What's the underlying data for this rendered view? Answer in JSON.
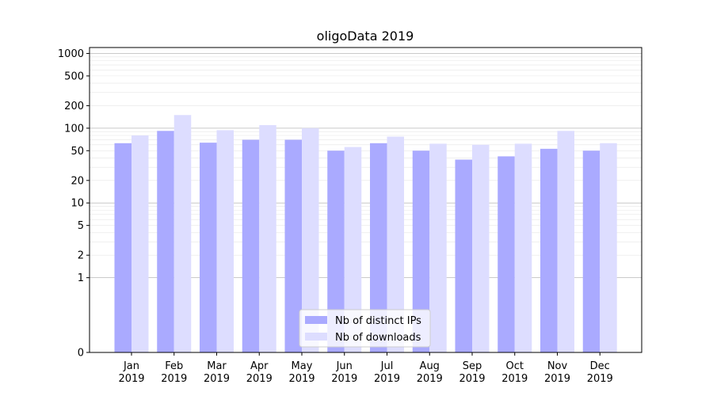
{
  "chart_data": {
    "type": "bar",
    "title": "oligoData 2019",
    "xlabel": "",
    "ylabel": "",
    "yscale": "symlog",
    "ylim": [
      0,
      1200
    ],
    "yticks": [
      0,
      1,
      2,
      5,
      10,
      20,
      50,
      100,
      200,
      500,
      1000
    ],
    "ytick_labels": [
      "0",
      "1",
      "2",
      "5",
      "10",
      "20",
      "50",
      "100",
      "200",
      "500",
      "1000"
    ],
    "categories": [
      {
        "month": "Jan",
        "year": "2019"
      },
      {
        "month": "Feb",
        "year": "2019"
      },
      {
        "month": "Mar",
        "year": "2019"
      },
      {
        "month": "Apr",
        "year": "2019"
      },
      {
        "month": "May",
        "year": "2019"
      },
      {
        "month": "Jun",
        "year": "2019"
      },
      {
        "month": "Jul",
        "year": "2019"
      },
      {
        "month": "Aug",
        "year": "2019"
      },
      {
        "month": "Sep",
        "year": "2019"
      },
      {
        "month": "Oct",
        "year": "2019"
      },
      {
        "month": "Nov",
        "year": "2019"
      },
      {
        "month": "Dec",
        "year": "2019"
      }
    ],
    "series": [
      {
        "name": "Nb of distinct IPs",
        "color": "#aaaaff",
        "values": [
          63,
          92,
          64,
          70,
          70,
          50,
          63,
          50,
          38,
          42,
          53,
          50
        ]
      },
      {
        "name": "Nb of downloads",
        "color": "#ddddff",
        "values": [
          80,
          150,
          94,
          110,
          100,
          56,
          77,
          62,
          60,
          62,
          92,
          63
        ]
      }
    ],
    "grid": true,
    "legend_position": "bottom-center"
  }
}
